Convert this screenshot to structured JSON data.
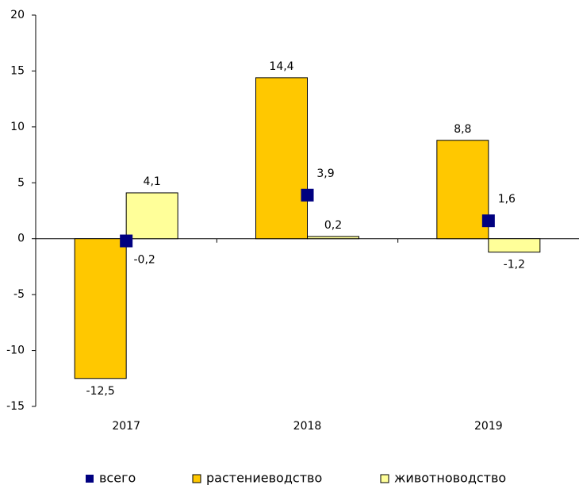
{
  "chart_data": {
    "type": "bar",
    "categories": [
      "2017",
      "2018",
      "2019"
    ],
    "series": [
      {
        "name": "всего",
        "color": "#000080",
        "mark": "square",
        "values": [
          -0.2,
          3.9,
          1.6
        ],
        "value_labels": [
          "-0,2",
          "3,9",
          "1,6"
        ]
      },
      {
        "name": "растениеводство",
        "color": "#ffc800",
        "values": [
          -12.5,
          14.4,
          8.8
        ],
        "value_labels": [
          "-12,5",
          "14,4",
          "8,8"
        ]
      },
      {
        "name": "животноводство",
        "color": "#ffff99",
        "values": [
          4.1,
          0.2,
          -1.2
        ],
        "value_labels": [
          "4,1",
          "0,2",
          "-1,2"
        ]
      }
    ],
    "ylim": [
      -15,
      20
    ],
    "yticks": [
      -15,
      -10,
      -5,
      0,
      5,
      10,
      15,
      20
    ],
    "grid": false,
    "legend": "bottom"
  }
}
